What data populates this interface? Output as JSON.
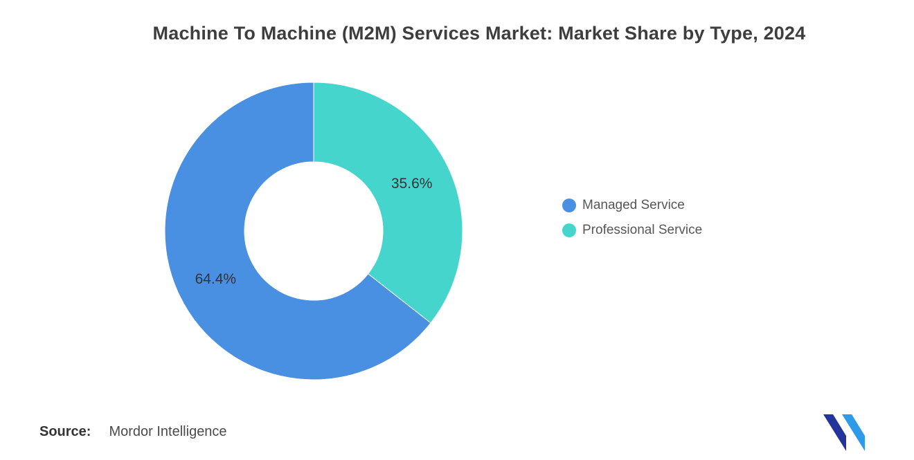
{
  "title": "Machine To Machine (M2M) Services Market: Market Share by Type, 2024",
  "legend": {
    "items": [
      {
        "label": "Managed Service",
        "color": "#4A90E2"
      },
      {
        "label": "Professional Service",
        "color": "#45D5CD"
      }
    ]
  },
  "source": {
    "prefix": "Source:",
    "name": "Mordor Intelligence"
  },
  "logo": {
    "alt": "Mordor Intelligence logo",
    "colors": {
      "dark": "#23359B",
      "light": "#2D9BE9"
    }
  },
  "chart_data": {
    "type": "pie",
    "subtype": "donut",
    "title": "Machine To Machine (M2M) Services Market: Market Share by Type, 2024",
    "categories": [
      "Managed Service",
      "Professional Service"
    ],
    "values": [
      64.4,
      35.6
    ],
    "labels": [
      "64.4%",
      "35.6%"
    ],
    "colors": [
      "#4A90E2",
      "#45D5CD"
    ],
    "unit": "%",
    "start_angle_deg": 0,
    "direction": "counterclockwise",
    "inner_radius_ratio": 0.465,
    "legend_position": "right"
  }
}
